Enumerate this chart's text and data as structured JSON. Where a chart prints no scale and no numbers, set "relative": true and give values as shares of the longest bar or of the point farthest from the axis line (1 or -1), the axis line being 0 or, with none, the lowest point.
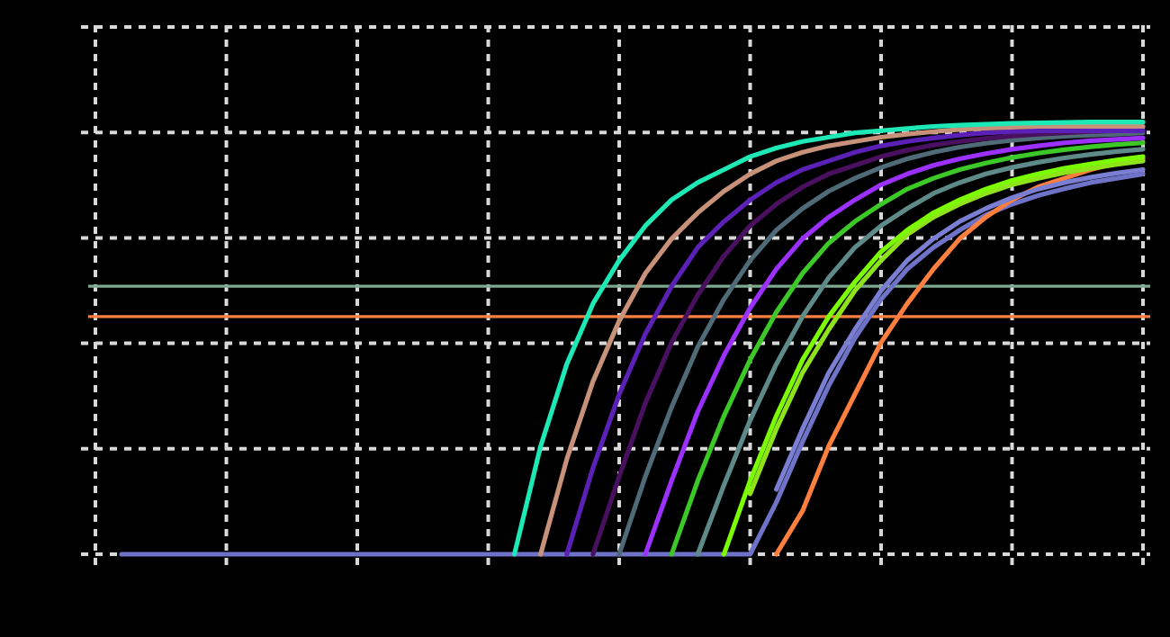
{
  "chart_data": {
    "type": "line",
    "relative": true,
    "grid": true,
    "line_style": "solid",
    "categories": [
      null,
      null,
      null,
      null,
      null,
      null,
      null,
      null,
      null,
      null,
      null,
      null,
      null,
      null,
      null,
      null,
      null,
      null,
      null,
      null,
      null,
      null,
      null,
      null,
      null,
      null,
      null,
      null,
      null,
      null,
      null,
      null,
      null,
      null,
      null,
      null,
      null,
      null,
      null,
      null,
      null
    ],
    "series": [
      {
        "color": "#6f73c8",
        "values": [
          null,
          0,
          0,
          0,
          0,
          0,
          0,
          0,
          0,
          0,
          0,
          0,
          0,
          0,
          0,
          0,
          0,
          0,
          0,
          0,
          0,
          0,
          0,
          0,
          0,
          0,
          0.12,
          0.26,
          0.39,
          0.5,
          0.59,
          0.66,
          0.71,
          0.75,
          0.785,
          0.81,
          0.83,
          0.846,
          0.86,
          0.87,
          0.88
        ]
      },
      {
        "color": "#ff7f3f",
        "values": [
          null,
          null,
          null,
          null,
          null,
          null,
          null,
          null,
          null,
          null,
          null,
          null,
          null,
          null,
          null,
          null,
          null,
          null,
          null,
          null,
          null,
          null,
          null,
          null,
          null,
          null,
          0,
          0.1,
          0.25,
          0.37,
          0.49,
          0.58,
          0.66,
          0.73,
          0.78,
          0.82,
          0.85,
          0.87,
          0.89,
          0.905,
          0.915
        ]
      },
      {
        "color": "#7b7fd4",
        "values": [
          null,
          null,
          null,
          null,
          null,
          null,
          null,
          null,
          null,
          null,
          null,
          null,
          null,
          null,
          null,
          null,
          null,
          null,
          null,
          null,
          null,
          null,
          null,
          null,
          null,
          null,
          0.15,
          0.29,
          0.42,
          0.52,
          0.61,
          0.68,
          0.73,
          0.77,
          0.8,
          0.825,
          0.845,
          0.86,
          0.872,
          0.882,
          0.89
        ]
      },
      {
        "color": "#8fe31a",
        "values": [
          null,
          null,
          null,
          null,
          null,
          null,
          null,
          null,
          null,
          null,
          null,
          null,
          null,
          null,
          null,
          null,
          null,
          null,
          null,
          null,
          null,
          null,
          null,
          null,
          null,
          0.14,
          0.29,
          0.42,
          0.52,
          0.61,
          0.68,
          0.74,
          0.78,
          0.81,
          0.835,
          0.855,
          0.87,
          0.883,
          0.893,
          0.902,
          0.91
        ]
      },
      {
        "color": "#7cfc00",
        "values": [
          null,
          null,
          null,
          null,
          null,
          null,
          null,
          null,
          null,
          null,
          null,
          null,
          null,
          null,
          null,
          null,
          null,
          null,
          null,
          null,
          null,
          null,
          null,
          null,
          0,
          0.17,
          0.32,
          0.45,
          0.55,
          0.63,
          0.7,
          0.75,
          0.79,
          0.82,
          0.845,
          0.865,
          0.88,
          0.893,
          0.903,
          0.912,
          0.92
        ]
      },
      {
        "color": "#5f8a8a",
        "values": [
          null,
          null,
          null,
          null,
          null,
          null,
          null,
          null,
          null,
          null,
          null,
          null,
          null,
          null,
          null,
          null,
          null,
          null,
          null,
          null,
          null,
          null,
          null,
          0,
          0.16,
          0.31,
          0.44,
          0.55,
          0.64,
          0.71,
          0.76,
          0.8,
          0.835,
          0.86,
          0.88,
          0.895,
          0.907,
          0.917,
          0.925,
          0.932,
          0.937
        ]
      },
      {
        "color": "#3cc826",
        "values": [
          null,
          null,
          null,
          null,
          null,
          null,
          null,
          null,
          null,
          null,
          null,
          null,
          null,
          null,
          null,
          null,
          null,
          null,
          null,
          null,
          null,
          null,
          0,
          0.17,
          0.32,
          0.45,
          0.56,
          0.65,
          0.72,
          0.77,
          0.81,
          0.845,
          0.87,
          0.89,
          0.905,
          0.918,
          0.928,
          0.936,
          0.943,
          0.948,
          0.952
        ]
      },
      {
        "color": "#9b30ff",
        "values": [
          null,
          null,
          null,
          null,
          null,
          null,
          null,
          null,
          null,
          null,
          null,
          null,
          null,
          null,
          null,
          null,
          null,
          null,
          null,
          null,
          null,
          0,
          0.17,
          0.33,
          0.46,
          0.57,
          0.66,
          0.73,
          0.78,
          0.82,
          0.855,
          0.88,
          0.9,
          0.915,
          0.927,
          0.937,
          0.945,
          0.952,
          0.957,
          0.96,
          0.963
        ]
      },
      {
        "color": "#4f6b78",
        "values": [
          null,
          null,
          null,
          null,
          null,
          null,
          null,
          null,
          null,
          null,
          null,
          null,
          null,
          null,
          null,
          null,
          null,
          null,
          null,
          null,
          0,
          0.18,
          0.34,
          0.48,
          0.59,
          0.68,
          0.75,
          0.8,
          0.84,
          0.87,
          0.895,
          0.915,
          0.93,
          0.942,
          0.951,
          0.958,
          0.963,
          0.967,
          0.97,
          0.972,
          0.975
        ]
      },
      {
        "color": "#4a1060",
        "values": [
          null,
          null,
          null,
          null,
          null,
          null,
          null,
          null,
          null,
          null,
          null,
          null,
          null,
          null,
          null,
          null,
          null,
          null,
          null,
          0,
          0.18,
          0.35,
          0.49,
          0.6,
          0.69,
          0.76,
          0.81,
          0.85,
          0.88,
          0.9,
          0.92,
          0.935,
          0.947,
          0.955,
          0.962,
          0.968,
          0.972,
          0.975,
          0.978,
          0.98,
          0.98
        ]
      },
      {
        "color": "#5b21b6",
        "values": [
          null,
          null,
          null,
          null,
          null,
          null,
          null,
          null,
          null,
          null,
          null,
          null,
          null,
          null,
          null,
          null,
          null,
          null,
          0,
          0.2,
          0.37,
          0.51,
          0.62,
          0.71,
          0.77,
          0.82,
          0.86,
          0.89,
          0.91,
          0.93,
          0.945,
          0.955,
          0.963,
          0.97,
          0.975,
          0.978,
          0.98,
          0.98,
          0.98,
          0.98,
          0.98
        ]
      },
      {
        "color": "#c8927a",
        "values": [
          null,
          null,
          null,
          null,
          null,
          null,
          null,
          null,
          null,
          null,
          null,
          null,
          null,
          null,
          null,
          null,
          null,
          0,
          0.22,
          0.4,
          0.54,
          0.65,
          0.73,
          0.79,
          0.84,
          0.88,
          0.91,
          0.93,
          0.945,
          0.955,
          0.965,
          0.972,
          0.978,
          0.983,
          0.986,
          0.988,
          0.99,
          0.99,
          0.99,
          0.99,
          0.99
        ]
      },
      {
        "color": "#1de9b6",
        "values": [
          null,
          null,
          null,
          null,
          null,
          null,
          null,
          null,
          null,
          null,
          null,
          null,
          null,
          null,
          null,
          null,
          0,
          0.25,
          0.44,
          0.58,
          0.68,
          0.76,
          0.82,
          0.86,
          0.89,
          0.92,
          0.94,
          0.955,
          0.965,
          0.975,
          0.98,
          0.985,
          0.99,
          0.993,
          0.995,
          0.997,
          0.998,
          0.999,
          1,
          1,
          1
        ]
      }
    ],
    "ref_lines": [
      {
        "axis": "y",
        "value": 0.62,
        "color": "#7fa890"
      },
      {
        "axis": "y",
        "value": 0.55,
        "color": "#ff7f3f"
      }
    ]
  }
}
